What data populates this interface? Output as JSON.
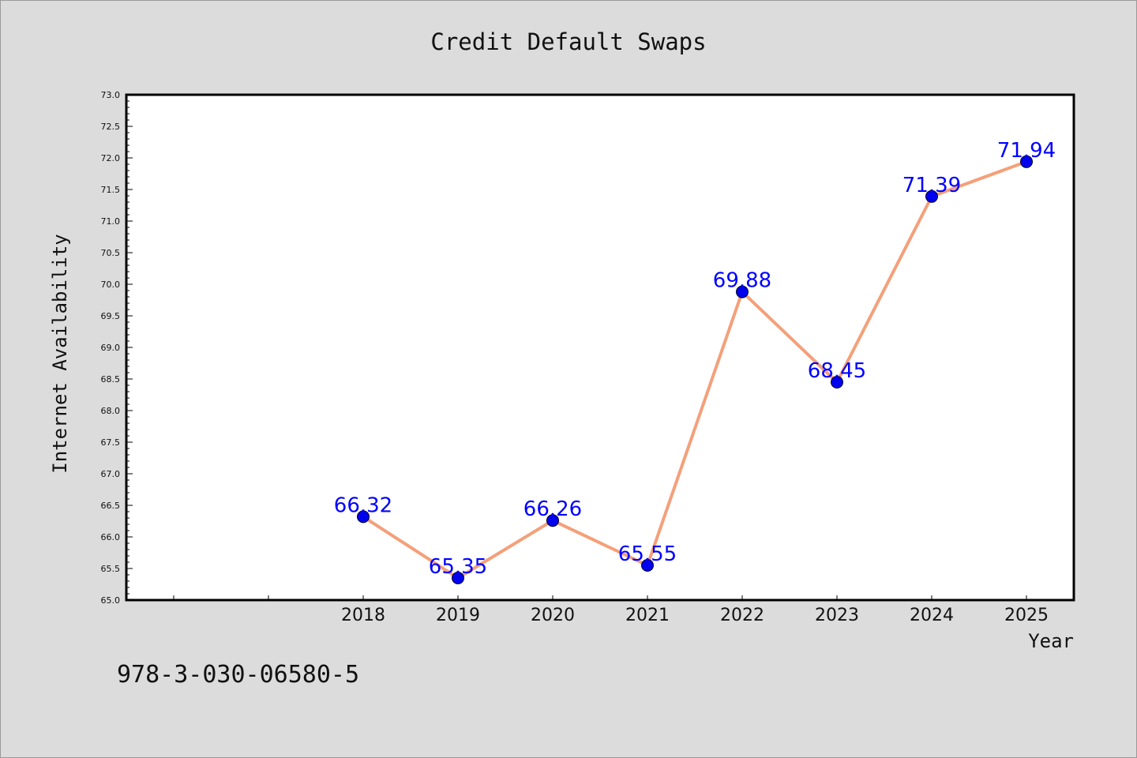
{
  "chart_data": {
    "type": "line",
    "title": "Credit Default Swaps",
    "xlabel": "Year",
    "ylabel": "Internet Availability",
    "x": [
      "2018",
      "2019",
      "2020",
      "2021",
      "2022",
      "2023",
      "2024",
      "2025"
    ],
    "series": [
      {
        "values": [
          66.32,
          65.35,
          66.26,
          65.55,
          69.88,
          68.45,
          71.39,
          71.94
        ]
      }
    ],
    "data_labels": [
      "66.32",
      "65.35",
      "66.26",
      "65.55",
      "69.88",
      "68.45",
      "71.39",
      "71.94"
    ],
    "ylim": [
      65.0,
      73.0
    ],
    "yticks": [
      "65.0",
      "65.5",
      "66.0",
      "66.5",
      "67.0",
      "67.5",
      "68.0",
      "68.5",
      "69.0",
      "69.5",
      "70.0",
      "70.5",
      "71.0",
      "71.5",
      "72.0",
      "72.5",
      "73.0"
    ],
    "grid": false,
    "line_color": "#f4a07a",
    "marker_color": "#0000ee",
    "label_color": "#0000ff",
    "plot_background": "#ffffff",
    "page_background": "#dcdcdc"
  },
  "footer": {
    "code": "978-3-030-06580-5"
  }
}
